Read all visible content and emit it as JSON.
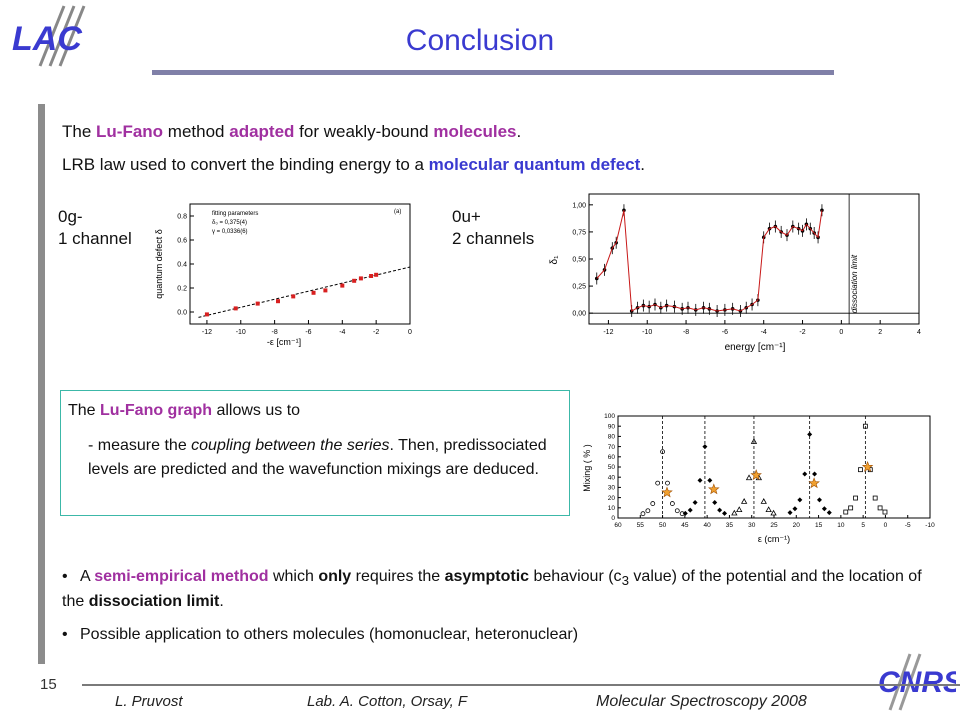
{
  "title": "Conclusion",
  "slide_number": "15",
  "footer": {
    "author": "L. Pruvost",
    "lab": "Lab. A. Cotton, Orsay, F",
    "conference": "Molecular Spectroscopy  2008"
  },
  "logos": {
    "top_left": "LAC",
    "bottom_right": "CNRS"
  },
  "line1": {
    "p1": "The ",
    "h1": "Lu-Fano",
    "p2": " method ",
    "h2": "adapted",
    "p3": " for weakly-bound ",
    "h3": "molecules",
    "p4": "."
  },
  "line2": {
    "p1": "LRB law used to convert the binding energy to a ",
    "h1": "molecular quantum defect",
    "p2": "."
  },
  "chart_labels": {
    "left_line1": "0g-",
    "left_line2": "1 channel",
    "right_line1": "0u+",
    "right_line2": "2 channels"
  },
  "box": {
    "intro_p1": "The ",
    "intro_h1": "Lu-Fano graph",
    "intro_p2": " allows us to",
    "item_p1": "- measure the ",
    "item_i1": "coupling between the series",
    "item_p2": ". Then, predissociated levels are predicted and the wavefunction mixings are deduced."
  },
  "bullets": [
    {
      "p1": "A ",
      "h1": "semi-empirical method",
      "p2": " which ",
      "s1": "only",
      "p3": " requires the ",
      "s2": "asymptotic",
      "p4": " behaviour (c",
      "sub": "3",
      "p5": " value) of the potential  and the location of the ",
      "s3": "dissociation limit",
      "p6": "."
    },
    {
      "p1": "Possible application to others molecules (homonuclear, heteronuclear)"
    }
  ],
  "chart_data": [
    {
      "type": "scatter",
      "xlabel": "-ε [cm⁻¹]",
      "ylabel": "quantum defect δ",
      "xlim": [
        -13,
        0
      ],
      "ylim": [
        -0.1,
        0.9
      ],
      "xticks": [
        -12,
        -10,
        -8,
        -6,
        -4,
        -2,
        0
      ],
      "yticks": [
        0.0,
        0.2,
        0.4,
        0.6,
        0.8
      ],
      "legend": {
        "title": "fitting parameters",
        "line1": "δ₀ = 0,375(4)",
        "line2": "γ = 0,0336(6)"
      },
      "panel_tag": "(a)",
      "points": {
        "x": [
          -12.0,
          -10.3,
          -9.0,
          -7.8,
          -6.9,
          -5.7,
          -5.0,
          -4.0,
          -3.3,
          -2.9,
          -2.3,
          -2.0
        ],
        "y": [
          -0.02,
          0.03,
          0.07,
          0.09,
          0.13,
          0.16,
          0.18,
          0.22,
          0.26,
          0.28,
          0.3,
          0.31
        ]
      },
      "fit": {
        "x": [
          -12.5,
          0
        ],
        "y": [
          -0.045,
          0.375
        ]
      }
    },
    {
      "type": "scatter",
      "xlabel": "energy [cm⁻¹]",
      "ylabel": "δ₁",
      "annotation": "dissociation limit",
      "xlim": [
        -13,
        4
      ],
      "ylim": [
        -0.1,
        1.1
      ],
      "xticks": [
        -12,
        -10,
        -8,
        -6,
        -4,
        -2,
        0,
        2,
        4
      ],
      "yticks": [
        "0,00",
        "0,25",
        "0,50",
        "0,75",
        "1,00"
      ],
      "points": {
        "x": [
          -12.6,
          -12.2,
          -11.8,
          -11.6,
          -11.2,
          -10.8,
          -10.5,
          -10.2,
          -9.9,
          -9.6,
          -9.3,
          -9.0,
          -8.6,
          -8.2,
          -7.9,
          -7.5,
          -7.1,
          -6.8,
          -6.4,
          -6.0,
          -5.6,
          -5.2,
          -4.9,
          -4.6,
          -4.3,
          -4.0,
          -3.7,
          -3.4,
          -3.1,
          -2.8,
          -2.5,
          -2.2,
          -2.0,
          -1.8,
          -1.6,
          -1.4,
          -1.2,
          -1.0
        ],
        "y": [
          0.32,
          0.4,
          0.6,
          0.65,
          0.95,
          0.02,
          0.05,
          0.07,
          0.06,
          0.08,
          0.05,
          0.07,
          0.06,
          0.04,
          0.05,
          0.03,
          0.05,
          0.04,
          0.02,
          0.03,
          0.04,
          0.02,
          0.05,
          0.08,
          0.12,
          0.7,
          0.78,
          0.8,
          0.75,
          0.72,
          0.8,
          0.78,
          0.76,
          0.82,
          0.78,
          0.74,
          0.7,
          0.95
        ]
      }
    },
    {
      "type": "scatter",
      "xlabel": "ε (cm⁻¹)",
      "ylabel": "Mixing ( % )",
      "xlim": [
        -10,
        60
      ],
      "ylim": [
        0,
        100
      ],
      "xticks": [
        60,
        55,
        50,
        45,
        40,
        35,
        30,
        25,
        20,
        15,
        10,
        5,
        0,
        -5,
        -10
      ],
      "yticks": [
        0,
        10,
        20,
        30,
        40,
        50,
        60,
        70,
        80,
        90,
        100
      ],
      "peaks": [
        {
          "center": 50,
          "height": 65,
          "marker": "circle"
        },
        {
          "center": 40.5,
          "height": 70,
          "marker": "diamond"
        },
        {
          "center": 29.5,
          "height": 75,
          "marker": "triangle"
        },
        {
          "center": 17,
          "height": 82,
          "marker": "diamond"
        },
        {
          "center": 4.5,
          "height": 90,
          "marker": "square"
        }
      ],
      "stars": [
        {
          "x": 49,
          "y": 25
        },
        {
          "x": 38.5,
          "y": 28
        },
        {
          "x": 29,
          "y": 42
        },
        {
          "x": 16,
          "y": 34
        },
        {
          "x": 4,
          "y": 50
        }
      ]
    }
  ]
}
